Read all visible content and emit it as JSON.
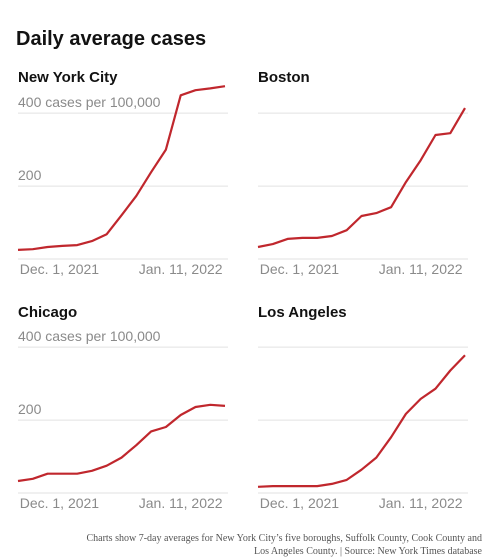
{
  "title": "Daily average cases",
  "note": [
    "Charts show 7-day averages for New York City’s five boroughs, Suffolk County, Cook County and",
    "Los Angeles County. | Source: New York Times database"
  ],
  "chart_data": [
    {
      "type": "line",
      "title": "New York City",
      "color": "#c0272d",
      "x": [
        "2021-11-17",
        "2021-11-22",
        "2021-11-27",
        "2021-12-02",
        "2021-12-07",
        "2021-12-12",
        "2021-12-17",
        "2021-12-22",
        "2021-12-27",
        "2022-01-01",
        "2022-01-06",
        "2022-01-11",
        "2022-01-16",
        "2022-01-21",
        "2022-01-26"
      ],
      "values": [
        25,
        27,
        33,
        36,
        38,
        49,
        68,
        120,
        173,
        238,
        300,
        449,
        463,
        468,
        474
      ],
      "xlim": [
        "2021-11-17",
        "2022-01-27"
      ],
      "xticks": [
        {
          "value": "2021-12-01",
          "label": "Dec. 1, 2021"
        },
        {
          "value": "2022-01-11",
          "label": "Jan. 11, 2022"
        }
      ],
      "ylim": [
        0,
        480
      ],
      "yticks": [
        200,
        {
          "value": 400,
          "label": "400 cases per 100,000"
        }
      ],
      "tick_labels": true,
      "grid": true
    },
    {
      "type": "line",
      "title": "Boston",
      "color": "#c0272d",
      "x": [
        "2021-11-17",
        "2021-11-22",
        "2021-11-27",
        "2021-12-02",
        "2021-12-07",
        "2021-12-12",
        "2021-12-17",
        "2021-12-22",
        "2021-12-27",
        "2022-01-01",
        "2022-01-06",
        "2022-01-11",
        "2022-01-16",
        "2022-01-21",
        "2022-01-26"
      ],
      "values": [
        33,
        41,
        55,
        58,
        58,
        63,
        79,
        118,
        126,
        142,
        211,
        271,
        340,
        345,
        414
      ],
      "xlim": [
        "2021-11-17",
        "2022-01-27"
      ],
      "xticks": [
        {
          "value": "2021-12-01",
          "label": "Dec. 1, 2021"
        },
        {
          "value": "2022-01-11",
          "label": "Jan. 11, 2022"
        }
      ],
      "ylim": [
        0,
        480
      ],
      "yticks": [
        200,
        400
      ],
      "tick_labels": false,
      "grid": true
    },
    {
      "type": "line",
      "title": "Chicago",
      "color": "#c0272d",
      "x": [
        "2021-11-17",
        "2021-11-22",
        "2021-11-27",
        "2021-12-02",
        "2021-12-07",
        "2021-12-12",
        "2021-12-17",
        "2021-12-22",
        "2021-12-27",
        "2022-01-01",
        "2022-01-06",
        "2022-01-11",
        "2022-01-16",
        "2022-01-21",
        "2022-01-26"
      ],
      "values": [
        33,
        39,
        53,
        53,
        53,
        61,
        75,
        97,
        131,
        169,
        181,
        214,
        236,
        242,
        239
      ],
      "xlim": [
        "2021-11-17",
        "2022-01-27"
      ],
      "xticks": [
        {
          "value": "2021-12-01",
          "label": "Dec. 1, 2021"
        },
        {
          "value": "2022-01-11",
          "label": "Jan. 11, 2022"
        }
      ],
      "ylim": [
        0,
        480
      ],
      "yticks": [
        200,
        {
          "value": 400,
          "label": "400 cases per 100,000"
        }
      ],
      "tick_labels": true,
      "grid": true
    },
    {
      "type": "line",
      "title": "Los Angeles",
      "color": "#c0272d",
      "x": [
        "2021-11-17",
        "2021-11-22",
        "2021-11-27",
        "2021-12-02",
        "2021-12-07",
        "2021-12-12",
        "2021-12-17",
        "2021-12-22",
        "2021-12-27",
        "2022-01-01",
        "2022-01-06",
        "2022-01-11",
        "2022-01-16",
        "2022-01-21",
        "2022-01-26"
      ],
      "values": [
        17,
        19,
        19,
        19,
        19,
        25,
        36,
        64,
        97,
        153,
        217,
        258,
        286,
        336,
        378
      ],
      "xlim": [
        "2021-11-17",
        "2022-01-27"
      ],
      "xticks": [
        {
          "value": "2021-12-01",
          "label": "Dec. 1, 2021"
        },
        {
          "value": "2022-01-11",
          "label": "Jan. 11, 2022"
        }
      ],
      "ylim": [
        0,
        480
      ],
      "yticks": [
        200,
        400
      ],
      "tick_labels": false,
      "grid": true
    }
  ]
}
